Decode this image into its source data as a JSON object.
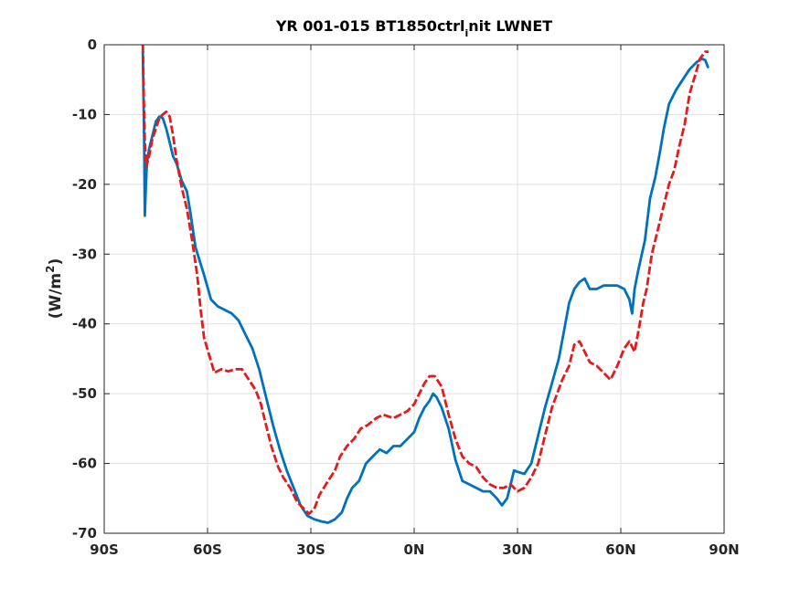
{
  "chart_data": {
    "type": "line",
    "title": {
      "main": "YR 001-015 BT1850ctrl",
      "sub": "i",
      "rest": "nit LWNET"
    },
    "ylabel": {
      "pre": "(W/m",
      "sup": "2",
      "post": ")"
    },
    "xlabel": "",
    "xlim": [
      -90,
      90
    ],
    "ylim": [
      -70,
      0
    ],
    "grid": true,
    "xticks": [
      {
        "value": -90,
        "label": "90S"
      },
      {
        "value": -60,
        "label": "60S"
      },
      {
        "value": -30,
        "label": "30S"
      },
      {
        "value": 0,
        "label": "0N"
      },
      {
        "value": 30,
        "label": "30N"
      },
      {
        "value": 60,
        "label": "60N"
      },
      {
        "value": 90,
        "label": "90N"
      }
    ],
    "yticks": [
      {
        "value": 0,
        "label": "0"
      },
      {
        "value": -10,
        "label": "-10"
      },
      {
        "value": -20,
        "label": "-20"
      },
      {
        "value": -30,
        "label": "-30"
      },
      {
        "value": -40,
        "label": "-40"
      },
      {
        "value": -50,
        "label": "-50"
      },
      {
        "value": -60,
        "label": "-60"
      },
      {
        "value": -70,
        "label": "-70"
      }
    ],
    "series": [
      {
        "color": "#0072BD",
        "style": "solid",
        "points": [
          [
            -78.8,
            -1
          ],
          [
            -78.4,
            -14
          ],
          [
            -78.2,
            -24.5
          ],
          [
            -77.9,
            -20
          ],
          [
            -77.6,
            -17
          ],
          [
            -77,
            -15
          ],
          [
            -76,
            -13
          ],
          [
            -75,
            -11
          ],
          [
            -74,
            -10.3
          ],
          [
            -73,
            -10.5
          ],
          [
            -72,
            -12
          ],
          [
            -71,
            -14
          ],
          [
            -70,
            -16
          ],
          [
            -69,
            -17
          ],
          [
            -67.5,
            -19.5
          ],
          [
            -66,
            -21
          ],
          [
            -65,
            -24
          ],
          [
            -63.5,
            -29
          ],
          [
            -61,
            -33
          ],
          [
            -59,
            -36.5
          ],
          [
            -57,
            -37.5
          ],
          [
            -55,
            -38
          ],
          [
            -53,
            -38.5
          ],
          [
            -51,
            -39.5
          ],
          [
            -49,
            -41.5
          ],
          [
            -47,
            -43.5
          ],
          [
            -45,
            -46.5
          ],
          [
            -43,
            -50.5
          ],
          [
            -41,
            -54.5
          ],
          [
            -39,
            -58
          ],
          [
            -37,
            -61
          ],
          [
            -35,
            -63.5
          ],
          [
            -33,
            -66
          ],
          [
            -31,
            -67.5
          ],
          [
            -29,
            -68
          ],
          [
            -27,
            -68.3
          ],
          [
            -25,
            -68.5
          ],
          [
            -23,
            -68
          ],
          [
            -21,
            -67
          ],
          [
            -19.5,
            -65
          ],
          [
            -18,
            -63.5
          ],
          [
            -16,
            -62.5
          ],
          [
            -14,
            -60
          ],
          [
            -12,
            -59
          ],
          [
            -10,
            -58
          ],
          [
            -8,
            -58.5
          ],
          [
            -6,
            -57.5
          ],
          [
            -4,
            -57.5
          ],
          [
            -2,
            -56.5
          ],
          [
            0,
            -55.5
          ],
          [
            1.5,
            -53.5
          ],
          [
            3,
            -52
          ],
          [
            4.5,
            -51
          ],
          [
            5.5,
            -50
          ],
          [
            6.5,
            -50.5
          ],
          [
            8,
            -52
          ],
          [
            10,
            -55
          ],
          [
            12,
            -59.5
          ],
          [
            14,
            -62.5
          ],
          [
            16,
            -63
          ],
          [
            18,
            -63.5
          ],
          [
            20,
            -64
          ],
          [
            22,
            -64
          ],
          [
            24,
            -65
          ],
          [
            25.5,
            -66
          ],
          [
            27,
            -65
          ],
          [
            28,
            -63
          ],
          [
            29,
            -61
          ],
          [
            30,
            -61.2
          ],
          [
            32,
            -61.5
          ],
          [
            34,
            -60
          ],
          [
            36,
            -56
          ],
          [
            38,
            -52
          ],
          [
            40,
            -48.5
          ],
          [
            42,
            -45
          ],
          [
            43.5,
            -41
          ],
          [
            45,
            -37
          ],
          [
            46.5,
            -35
          ],
          [
            48,
            -34
          ],
          [
            49.5,
            -33.5
          ],
          [
            51,
            -35
          ],
          [
            53,
            -35
          ],
          [
            55,
            -34.5
          ],
          [
            57,
            -34.5
          ],
          [
            59,
            -34.5
          ],
          [
            61,
            -35
          ],
          [
            62.5,
            -36.5
          ],
          [
            63.3,
            -38.5
          ],
          [
            64,
            -35
          ],
          [
            65,
            -32.5
          ],
          [
            67,
            -28
          ],
          [
            68.5,
            -22
          ],
          [
            70,
            -19
          ],
          [
            71.5,
            -15
          ],
          [
            72.5,
            -12
          ],
          [
            74,
            -8.5
          ],
          [
            76,
            -6.5
          ],
          [
            78,
            -5
          ],
          [
            80,
            -3.5
          ],
          [
            82,
            -2.5
          ],
          [
            83.5,
            -2
          ],
          [
            84.5,
            -2.2
          ],
          [
            85.3,
            -3.2
          ]
        ]
      },
      {
        "color": "#E41A1C",
        "style": "dashed",
        "points": [
          [
            -78.8,
            0
          ],
          [
            -78.5,
            -8
          ],
          [
            -78.2,
            -14
          ],
          [
            -77.8,
            -17.5
          ],
          [
            -77,
            -16
          ],
          [
            -76,
            -13.5
          ],
          [
            -75,
            -12
          ],
          [
            -74,
            -10.5
          ],
          [
            -73,
            -10
          ],
          [
            -72,
            -9.6
          ],
          [
            -71,
            -10.3
          ],
          [
            -70,
            -13
          ],
          [
            -69,
            -16.5
          ],
          [
            -67.5,
            -20.5
          ],
          [
            -66,
            -23.5
          ],
          [
            -64.5,
            -28
          ],
          [
            -63,
            -33
          ],
          [
            -62,
            -38
          ],
          [
            -61,
            -42
          ],
          [
            -59.5,
            -44.5
          ],
          [
            -58,
            -47
          ],
          [
            -56,
            -46.5
          ],
          [
            -54,
            -46.8
          ],
          [
            -52,
            -46.5
          ],
          [
            -50,
            -46.5
          ],
          [
            -48,
            -48
          ],
          [
            -46,
            -49.5
          ],
          [
            -44.5,
            -51.5
          ],
          [
            -43,
            -54.5
          ],
          [
            -41.5,
            -57.5
          ],
          [
            -39.5,
            -60.5
          ],
          [
            -38,
            -62
          ],
          [
            -36,
            -63.5
          ],
          [
            -34,
            -65.5
          ],
          [
            -32,
            -66.5
          ],
          [
            -30.5,
            -67.2
          ],
          [
            -29,
            -66.5
          ],
          [
            -27.5,
            -64.5
          ],
          [
            -25,
            -62.5
          ],
          [
            -23,
            -61
          ],
          [
            -21.5,
            -59
          ],
          [
            -19.5,
            -57.5
          ],
          [
            -17.5,
            -56.5
          ],
          [
            -15.5,
            -55
          ],
          [
            -13.5,
            -54.5
          ],
          [
            -11,
            -53.5
          ],
          [
            -9,
            -53
          ],
          [
            -6,
            -53.5
          ],
          [
            -4,
            -53
          ],
          [
            -2,
            -52.5
          ],
          [
            0,
            -51.5
          ],
          [
            1.5,
            -50
          ],
          [
            3,
            -48.5
          ],
          [
            4.5,
            -47.5
          ],
          [
            6,
            -47.5
          ],
          [
            8,
            -49
          ],
          [
            10,
            -53
          ],
          [
            12,
            -56.5
          ],
          [
            14,
            -59
          ],
          [
            16,
            -60
          ],
          [
            18,
            -60.5
          ],
          [
            20,
            -62
          ],
          [
            22,
            -63
          ],
          [
            24,
            -63.5
          ],
          [
            26,
            -63.5
          ],
          [
            28,
            -63
          ],
          [
            30,
            -64
          ],
          [
            32,
            -63.5
          ],
          [
            34,
            -62
          ],
          [
            36,
            -60
          ],
          [
            38,
            -56
          ],
          [
            40,
            -52
          ],
          [
            41.5,
            -50
          ],
          [
            43,
            -48
          ],
          [
            45,
            -46
          ],
          [
            46.5,
            -43
          ],
          [
            48,
            -42.5
          ],
          [
            49.5,
            -44
          ],
          [
            51,
            -45.5
          ],
          [
            53,
            -46
          ],
          [
            55,
            -47
          ],
          [
            57,
            -48
          ],
          [
            59,
            -46
          ],
          [
            61,
            -43.5
          ],
          [
            62.5,
            -42.5
          ],
          [
            64,
            -44
          ],
          [
            65.5,
            -40
          ],
          [
            66.5,
            -37
          ],
          [
            67.5,
            -35
          ],
          [
            69,
            -30
          ],
          [
            70.5,
            -27
          ],
          [
            72,
            -24
          ],
          [
            74,
            -20
          ],
          [
            75.5,
            -18
          ],
          [
            77,
            -14.5
          ],
          [
            78.5,
            -11.5
          ],
          [
            80,
            -7
          ],
          [
            81.5,
            -4.5
          ],
          [
            83,
            -2
          ],
          [
            84.5,
            -1
          ],
          [
            85.5,
            -1
          ]
        ]
      }
    ]
  }
}
